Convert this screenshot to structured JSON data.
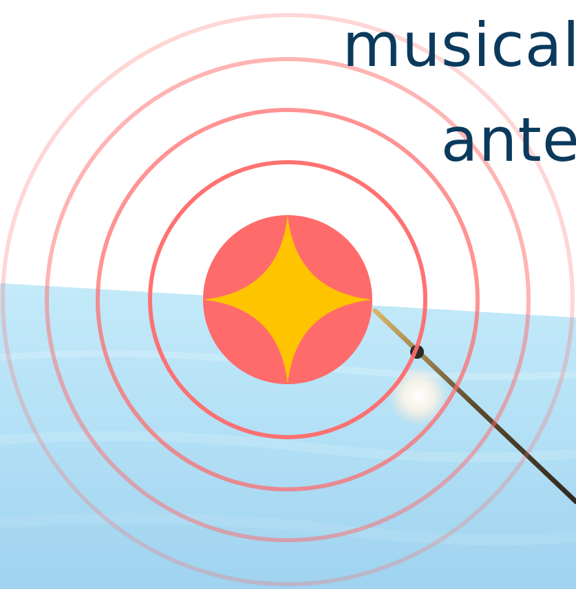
{
  "headline": {
    "line1": "musical",
    "line2": "ante"
  },
  "colors": {
    "ring": "#ff6a6a",
    "badge_circle": "#ff6b6b",
    "badge_star": "#ffc400",
    "text": "#0b3a5c",
    "sky": "#bfe6f7",
    "sea": "#a9dcf3"
  },
  "icons": {
    "badge": "sparkle-star-icon",
    "rings": "pulse-rings-icon"
  }
}
